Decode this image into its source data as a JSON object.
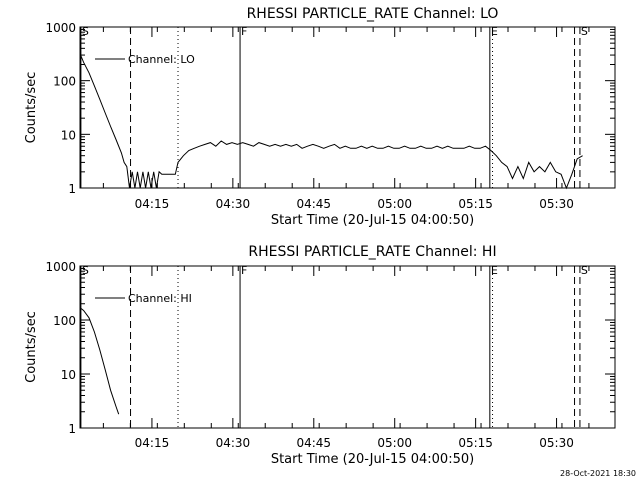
{
  "footer": {
    "timestamp": "28-Oct-2021 18:30"
  },
  "chart_data": [
    {
      "type": "line",
      "title": "RHESSI PARTICLE_RATE Channel: LO",
      "xlabel": "Start Time (20-Jul-15 04:00:50)",
      "ylabel": "Counts/sec",
      "y_scale": "log",
      "ylim": [
        1,
        1000
      ],
      "xlim_minutes": [
        0.833,
        100
      ],
      "xticks": [
        "04:15",
        "04:30",
        "04:45",
        "05:00",
        "05:15",
        "05:30"
      ],
      "yticks": [
        "1",
        "10",
        "100",
        "1000"
      ],
      "legend": {
        "label": "Channel: LO",
        "position": "top-left"
      },
      "markers": [
        {
          "label": "S",
          "minute": 1.0,
          "style": "solid"
        },
        {
          "label": "",
          "minute": 10.2,
          "style": "dashed"
        },
        {
          "label": "",
          "minute": 19.0,
          "style": "dotted"
        },
        {
          "label": "F",
          "minute": 30.5,
          "style": "solid"
        },
        {
          "label": "E",
          "minute": 76.8,
          "style": "solid"
        },
        {
          "label": "",
          "minute": 77.3,
          "style": "dotted"
        },
        {
          "label": "",
          "minute": 92.5,
          "style": "dashed"
        },
        {
          "label": "S",
          "minute": 93.5,
          "style": "dashed"
        }
      ],
      "series": [
        {
          "name": "Channel: LO",
          "x": [
            0.83,
            1.5,
            2.5,
            3.5,
            4.5,
            5.5,
            6.5,
            7.5,
            8.5,
            9.0,
            9.5,
            10.0,
            10.5,
            11.0,
            11.5,
            12.0,
            12.5,
            13.0,
            13.5,
            14.0,
            14.5,
            15.0,
            15.5,
            16.0,
            17.0,
            18.0,
            18.5,
            19.0,
            20.0,
            21.0,
            22.0,
            23.0,
            24.0,
            25.0,
            26.0,
            27.0,
            28.0,
            29.0,
            30.0,
            31.0,
            32.0,
            33.0,
            34.0,
            35.0,
            36.0,
            37.0,
            38.0,
            39.0,
            40.0,
            41.0,
            42.0,
            43.0,
            44.0,
            45.0,
            46.0,
            47.0,
            48.0,
            49.0,
            50.0,
            51.0,
            52.0,
            53.0,
            54.0,
            55.0,
            56.0,
            57.0,
            58.0,
            59.0,
            60.0,
            61.0,
            62.0,
            63.0,
            64.0,
            65.0,
            66.0,
            67.0,
            68.0,
            69.0,
            70.0,
            71.0,
            72.0,
            73.0,
            74.0,
            75.0,
            76.0,
            77.0,
            78.0,
            79.0,
            80.0,
            81.0,
            82.0,
            83.0,
            84.0,
            85.0,
            86.0,
            87.0,
            88.0,
            89.0,
            90.0,
            91.0,
            92.0,
            93.0,
            94.0
          ],
          "y": [
            320,
            220,
            140,
            80,
            45,
            25,
            14,
            8,
            4.5,
            3,
            2.5,
            1,
            2,
            1,
            2,
            1,
            2,
            1,
            2,
            1,
            2,
            1,
            2,
            1.8,
            1.8,
            1.8,
            1.8,
            3,
            4,
            5,
            5.5,
            6,
            6.5,
            7,
            6,
            7.5,
            6.5,
            7,
            6.5,
            7,
            6.5,
            6,
            7,
            6.5,
            6,
            6.5,
            6,
            6.5,
            6,
            6.5,
            5.5,
            6,
            6.5,
            6,
            5.5,
            6,
            6.5,
            5.5,
            6,
            5.5,
            5.5,
            6,
            5.5,
            6,
            5.5,
            5.5,
            6,
            5.5,
            5.5,
            6,
            5.5,
            5.5,
            6,
            5.5,
            5.5,
            6,
            5.5,
            6,
            5.5,
            5.5,
            5.5,
            6,
            5.5,
            5.5,
            6,
            5,
            4,
            3,
            2.5,
            1.5,
            2.5,
            1.5,
            3,
            2,
            2.5,
            2,
            3,
            2,
            1.8,
            1,
            1.8,
            3.5,
            4
          ]
        }
      ]
    },
    {
      "type": "line",
      "title": "RHESSI PARTICLE_RATE Channel: HI",
      "xlabel": "Start Time (20-Jul-15 04:00:50)",
      "ylabel": "Counts/sec",
      "y_scale": "log",
      "ylim": [
        1,
        1000
      ],
      "xlim_minutes": [
        0.833,
        100
      ],
      "xticks": [
        "04:15",
        "04:30",
        "04:45",
        "05:00",
        "05:15",
        "05:30"
      ],
      "yticks": [
        "1",
        "10",
        "100",
        "1000"
      ],
      "legend": {
        "label": "Channel: HI",
        "position": "top-left"
      },
      "markers": [
        {
          "label": "S",
          "minute": 1.0,
          "style": "solid"
        },
        {
          "label": "",
          "minute": 10.2,
          "style": "dashed"
        },
        {
          "label": "",
          "minute": 19.0,
          "style": "dotted"
        },
        {
          "label": "F",
          "minute": 30.5,
          "style": "solid"
        },
        {
          "label": "E",
          "minute": 76.8,
          "style": "solid"
        },
        {
          "label": "",
          "minute": 77.3,
          "style": "dotted"
        },
        {
          "label": "",
          "minute": 92.5,
          "style": "dashed"
        },
        {
          "label": "S",
          "minute": 93.5,
          "style": "dashed"
        }
      ],
      "series": [
        {
          "name": "Channel: HI",
          "x": [
            0.83,
            1.5,
            2.5,
            3.5,
            4.5,
            5.5,
            6.5,
            7.5,
            8.0
          ],
          "y": [
            170,
            150,
            110,
            60,
            28,
            12,
            5,
            2.5,
            1.8
          ]
        }
      ]
    }
  ]
}
